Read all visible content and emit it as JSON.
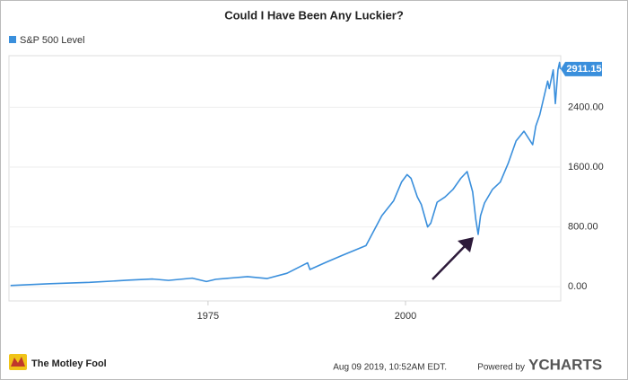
{
  "chart_data": {
    "type": "line",
    "title": "Could I Have Been Any Luckier?",
    "x": [
      1950,
      1955,
      1960,
      1965,
      1968,
      1970,
      1973,
      1974.8,
      1976,
      1980,
      1982.5,
      1985,
      1987.6,
      1987.9,
      1990,
      1992,
      1995,
      1997,
      1998.5,
      1999.5,
      2000.2,
      2000.7,
      2001.5,
      2002,
      2002.8,
      2003.2,
      2004,
      2005,
      2006,
      2007,
      2007.8,
      2008.5,
      2008.9,
      2009.2,
      2009.5,
      2010,
      2011,
      2012,
      2013,
      2014,
      2015,
      2016.1,
      2016.5,
      2017,
      2018,
      2018.2,
      2018.7,
      2018.97,
      2019.3,
      2019.5,
      2019.6
    ],
    "series": [
      {
        "name": "S&P 500 Level",
        "color": "#3a8fdc",
        "values": [
          17,
          40,
          58,
          88,
          103,
          85,
          115,
          70,
          100,
          135,
          110,
          180,
          320,
          230,
          330,
          420,
          550,
          950,
          1150,
          1400,
          1500,
          1450,
          1200,
          1100,
          800,
          850,
          1130,
          1200,
          1300,
          1450,
          1540,
          1270,
          900,
          700,
          950,
          1120,
          1300,
          1400,
          1650,
          1950,
          2080,
          1900,
          2150,
          2300,
          2750,
          2650,
          2900,
          2450,
          2900,
          3000,
          2911.15
        ]
      }
    ],
    "xlim": [
      1949.8,
      2019.65
    ],
    "xticks": [
      1975,
      2000
    ],
    "ylim": [
      -190,
      3090
    ],
    "yticks": [
      {
        "value": 0,
        "label": "0.00"
      },
      {
        "value": 800,
        "label": "800.00"
      },
      {
        "value": 1600,
        "label": "1600.00"
      },
      {
        "value": 2400,
        "label": "2400.00"
      }
    ],
    "grid": true
  },
  "footer": {
    "brand": "The Motley Fool",
    "timestamp": "Aug 09 2019, 10:52AM EDT.",
    "powered": "Powered by",
    "provider": "YCHARTS"
  }
}
